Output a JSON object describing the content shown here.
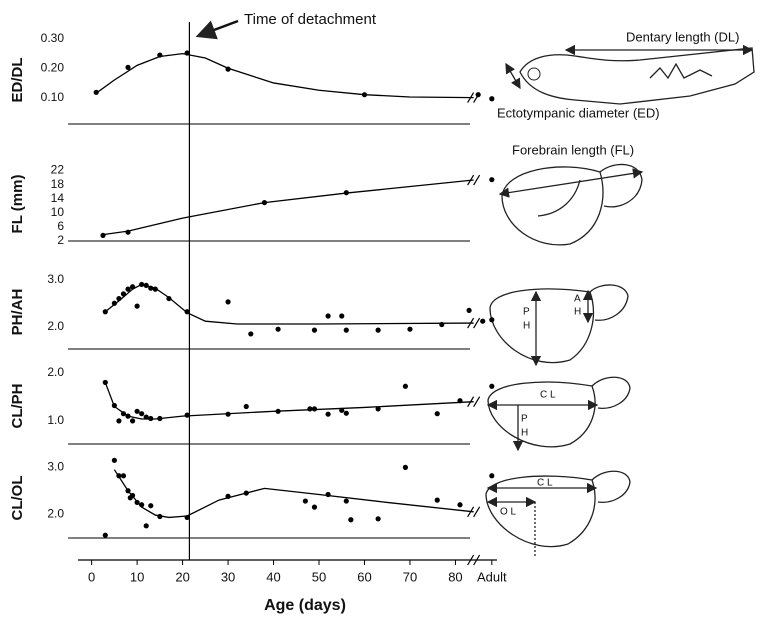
{
  "shared_x": {
    "xlim": [
      -3,
      92
    ],
    "xticks": [
      0,
      10,
      20,
      30,
      40,
      50,
      60,
      70,
      80,
      {
        "value": 88,
        "label": "Adult"
      }
    ],
    "xlabel": "Age (days)",
    "axis_break": 84
  },
  "annotation": {
    "text": "Time of detachment",
    "x": 21.5
  },
  "chart_data": [
    {
      "type": "scatter",
      "ylabel": "ED/DL",
      "ylim": [
        0.01,
        0.31
      ],
      "yticks": [
        {
          "value": 0.1,
          "label": "0.10"
        },
        {
          "value": 0.2,
          "label": "0.20"
        },
        {
          "value": 0.3,
          "label": "0.30"
        }
      ],
      "illustration_labels": [
        "Dentary length (DL)",
        "Ectotympanic diameter (ED)"
      ],
      "series": [
        {
          "color": "#000000",
          "x": [
            1,
            8,
            15,
            21,
            30,
            60,
            85,
            88
          ],
          "values": [
            0.118,
            0.203,
            0.245,
            0.252,
            0.197,
            0.11,
            0.11,
            0.096
          ]
        },
        {
          "type": "line",
          "color": "#000000",
          "x": [
            1,
            5,
            10,
            15,
            20,
            25,
            30,
            40,
            50,
            60,
            70,
            84
          ],
          "values": [
            0.115,
            0.16,
            0.21,
            0.24,
            0.25,
            0.235,
            0.2,
            0.15,
            0.125,
            0.11,
            0.102,
            0.1
          ]
        }
      ]
    },
    {
      "type": "scatter",
      "ylabel": "FL (mm)",
      "ylim": [
        2,
        23
      ],
      "yticks": [
        2,
        6,
        10,
        14,
        18,
        22
      ],
      "illustration_labels": [
        "Forebrain length (FL)"
      ],
      "series": [
        {
          "color": "#000000",
          "x": [
            2.5,
            8,
            38,
            56,
            88
          ],
          "values": [
            3.6,
            4.5,
            12.9,
            15.7,
            19.4
          ]
        },
        {
          "type": "line",
          "color": "#000000",
          "x": [
            2.5,
            8,
            20,
            38,
            56,
            84
          ],
          "values": [
            3.8,
            4.8,
            8.5,
            12.9,
            15.6,
            19.3
          ]
        }
      ]
    },
    {
      "type": "scatter",
      "ylabel": "PH/AH",
      "ylim": [
        1.53,
        3.1
      ],
      "yticks": [
        {
          "value": 2,
          "label": "2.0"
        },
        {
          "value": 3,
          "label": "3.0"
        }
      ],
      "illustration_labels": [
        "P",
        "H",
        "A",
        "H"
      ],
      "series": [
        {
          "color": "#000000",
          "x": [
            3,
            5,
            6,
            7,
            8,
            9,
            10,
            11,
            12,
            13,
            14,
            17,
            21,
            30,
            35,
            41,
            49,
            52,
            55,
            56,
            63,
            70,
            77,
            83,
            86,
            88
          ],
          "values": [
            2.32,
            2.5,
            2.6,
            2.7,
            2.8,
            2.85,
            2.44,
            2.9,
            2.88,
            2.82,
            2.8,
            2.6,
            2.32,
            2.53,
            1.85,
            1.95,
            1.93,
            2.23,
            2.23,
            1.93,
            1.93,
            1.95,
            2.05,
            2.35,
            2.12,
            2.15
          ]
        },
        {
          "type": "line",
          "color": "#000000",
          "x": [
            3,
            6,
            9,
            11,
            14,
            17,
            21,
            25,
            32,
            50,
            84
          ],
          "values": [
            2.32,
            2.55,
            2.8,
            2.9,
            2.82,
            2.62,
            2.3,
            2.12,
            2.06,
            2.06,
            2.08
          ]
        }
      ]
    },
    {
      "type": "scatter",
      "ylabel": "CL/PH",
      "ylim": [
        0.52,
        2.1
      ],
      "yticks": [
        {
          "value": 1,
          "label": "1.0"
        },
        {
          "value": 2,
          "label": "2.0"
        }
      ],
      "illustration_labels": [
        "C L",
        "P",
        "H"
      ],
      "series": [
        {
          "color": "#000000",
          "x": [
            3,
            5,
            6,
            7,
            8,
            9,
            10,
            11,
            12,
            13,
            15,
            21,
            30,
            34,
            41,
            48,
            49,
            52,
            55,
            56,
            63,
            69,
            76,
            81,
            88
          ],
          "values": [
            1.8,
            1.32,
            1.0,
            1.15,
            1.1,
            1.0,
            1.2,
            1.15,
            1.08,
            1.05,
            1.05,
            1.12,
            1.14,
            1.3,
            1.2,
            1.25,
            1.25,
            1.14,
            1.22,
            1.16,
            1.25,
            1.72,
            1.15,
            1.42,
            1.72
          ]
        },
        {
          "type": "line",
          "color": "#000000",
          "x": [
            3,
            5,
            8,
            11,
            14,
            20,
            40,
            60,
            84
          ],
          "values": [
            1.8,
            1.3,
            1.1,
            1.04,
            1.04,
            1.1,
            1.2,
            1.28,
            1.4
          ]
        }
      ]
    },
    {
      "type": "scatter",
      "ylabel": "CL/OL",
      "ylim": [
        1.49,
        3.2
      ],
      "yticks": [
        {
          "value": 2,
          "label": "2.0"
        },
        {
          "value": 3,
          "label": "3.0"
        }
      ],
      "illustration_labels": [
        "C L",
        "O L"
      ],
      "series": [
        {
          "color": "#000000",
          "x": [
            3,
            5,
            6,
            7,
            8,
            8.5,
            9,
            10,
            11,
            12,
            13,
            15,
            21,
            30,
            34,
            47,
            49,
            52,
            56,
            57,
            63,
            69,
            76,
            81,
            88
          ],
          "values": [
            1.55,
            3.15,
            2.82,
            2.82,
            2.5,
            2.35,
            2.4,
            2.25,
            2.2,
            1.75,
            2.18,
            1.95,
            1.93,
            2.38,
            2.45,
            2.28,
            2.15,
            2.42,
            2.28,
            1.88,
            1.9,
            3.0,
            2.3,
            2.2,
            2.82
          ]
        },
        {
          "type": "line",
          "color": "#000000",
          "x": [
            5,
            8,
            11,
            14,
            17,
            21,
            28,
            38,
            50,
            65,
            84
          ],
          "values": [
            2.95,
            2.5,
            2.15,
            1.98,
            1.93,
            1.96,
            2.3,
            2.55,
            2.42,
            2.25,
            2.05
          ]
        }
      ]
    }
  ]
}
